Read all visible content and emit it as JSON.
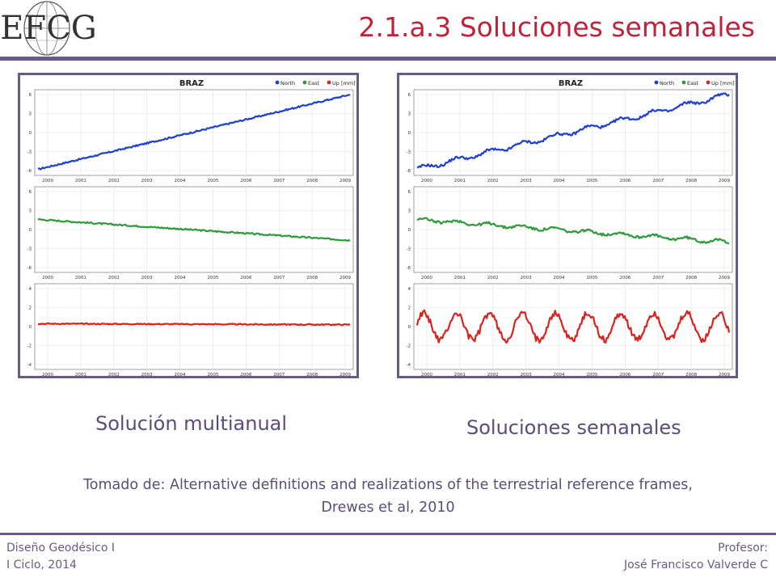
{
  "logo": {
    "text": "EFCG",
    "icon": "globe-logo-icon"
  },
  "slide": {
    "title": "2.1.a.3 Soluciones semanales"
  },
  "captions": {
    "left": "Solución multianual",
    "right": "Soluciones semanales"
  },
  "source": {
    "line1": "Tomado de: Alternative definitions and realizations of the terrestrial reference frames,",
    "line2": "Drewes et al, 2010"
  },
  "footer": {
    "course": "Diseño Geodésico I",
    "term": "I Ciclo, 2014",
    "professor_label": "Profesor:",
    "professor_name": "José Francisco Valverde C"
  },
  "colors": {
    "accent": "#6a5a87",
    "title": "#c0223a",
    "north": "#1f3fd1",
    "east": "#2f9a3a",
    "up": "#d8231f"
  },
  "chart_data": [
    {
      "type": "line",
      "title": "BRAZ",
      "legend": [
        "North",
        "East",
        "Up [mm]"
      ],
      "legend_placement": "top-right",
      "x_ticks": [
        "2000",
        "2001",
        "2002",
        "2003",
        "2004",
        "2005",
        "2006",
        "2007",
        "2008",
        "2009"
      ],
      "grid": true,
      "panels": [
        {
          "series": "North",
          "yticks": [
            "6",
            "3",
            "0",
            "-3",
            "-6"
          ],
          "ylim": [
            -6,
            6
          ],
          "x": [
            2000,
            2009.5
          ],
          "y": [
            -5.8,
            6.0
          ],
          "seasonal": 0,
          "noise": 0.12
        },
        {
          "series": "East",
          "yticks": [
            "6",
            "3",
            "0",
            "-3",
            "-6"
          ],
          "ylim": [
            -6,
            6
          ],
          "x": [
            2000,
            2009.5
          ],
          "y": [
            1.6,
            -1.7
          ],
          "seasonal": 0,
          "noise": 0.12
        },
        {
          "series": "Up [mm]",
          "yticks": [
            "4",
            "2",
            "0",
            "-2",
            "-4"
          ],
          "ylim": [
            -4,
            4
          ],
          "x": [
            2000,
            2009.5
          ],
          "y": [
            0.3,
            0.2
          ],
          "seasonal": 0,
          "noise": 0.06
        }
      ]
    },
    {
      "type": "line",
      "title": "BRAZ",
      "legend": [
        "North",
        "East",
        "Up [mm]"
      ],
      "legend_placement": "top-right",
      "x_ticks": [
        "2000",
        "2001",
        "2002",
        "2003",
        "2004",
        "2005",
        "2006",
        "2007",
        "2008",
        "2009"
      ],
      "grid": true,
      "panels": [
        {
          "series": "North",
          "yticks": [
            "6",
            "3",
            "0",
            "-3",
            "-6"
          ],
          "ylim": [
            -6,
            6
          ],
          "x": [
            2000,
            2009.5
          ],
          "y": [
            -5.8,
            6.0
          ],
          "seasonal": 0.35,
          "noise": 0.2
        },
        {
          "series": "East",
          "yticks": [
            "6",
            "3",
            "0",
            "-3",
            "-6"
          ],
          "ylim": [
            -6,
            6
          ],
          "x": [
            2000,
            2009.5
          ],
          "y": [
            1.6,
            -2.0
          ],
          "seasonal": 0.25,
          "noise": 0.2
        },
        {
          "series": "Up [mm]",
          "yticks": [
            "4",
            "2",
            "0",
            "-2",
            "-4"
          ],
          "ylim": [
            -4,
            4
          ],
          "x": [
            2000,
            2009.5
          ],
          "y": [
            0.0,
            0.0
          ],
          "seasonal": 1.4,
          "noise": 0.35
        }
      ]
    }
  ]
}
